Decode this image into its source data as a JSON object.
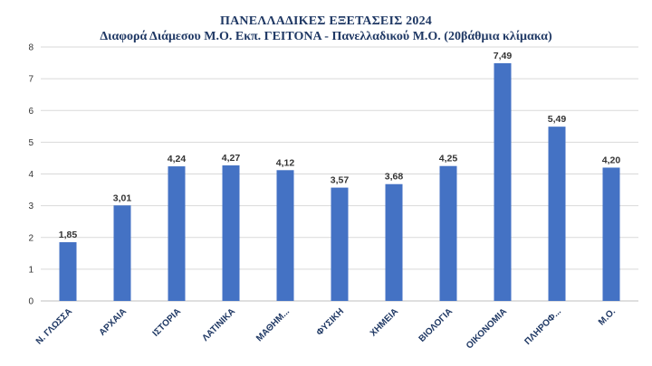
{
  "chart_data": {
    "type": "bar",
    "title": "ΠΑΝΕΛΛΑΔΙΚΕΣ ΕΞΕΤΑΣΕΙΣ 2024",
    "subtitle": "Διαφορά Διάμεσου Μ.Ο. Εκπ. ΓΕΙΤΟΝΑ - Πανελλαδικού Μ.Ο. (20βάθμια κλίμακα)",
    "categories": [
      "Ν. ΓΛΩΣΣΑ",
      "ΑΡΧΑΙΑ",
      "ΙΣΤΟΡΙΑ",
      "ΛΑΤΙΝΙΚΑ",
      "ΜΑΘΗΜ...",
      "ΦΥΣΙΚΗ",
      "ΧΗΜΕΙΑ",
      "ΒΙΟΛΟΓΙΑ",
      "ΟΙΚΟΝΟΜΙΑ",
      "ΠΛΗΡΟΦ...",
      "Μ.Ο."
    ],
    "values": [
      1.85,
      3.01,
      4.24,
      4.27,
      4.12,
      3.57,
      3.68,
      4.25,
      7.49,
      5.49,
      4.2
    ],
    "data_labels": [
      "1,85",
      "3,01",
      "4,24",
      "4,27",
      "4,12",
      "3,57",
      "3,68",
      "4,25",
      "7,49",
      "5,49",
      "4,20"
    ],
    "yticks": [
      0,
      1,
      2,
      3,
      4,
      5,
      6,
      7,
      8
    ],
    "ylim": [
      0,
      8
    ],
    "xlabel": "",
    "ylabel": "",
    "grid": true,
    "legend": "none",
    "bar_color": "#4472c4",
    "grid_color": "#d9d9d9",
    "title_color": "#1f3864"
  }
}
